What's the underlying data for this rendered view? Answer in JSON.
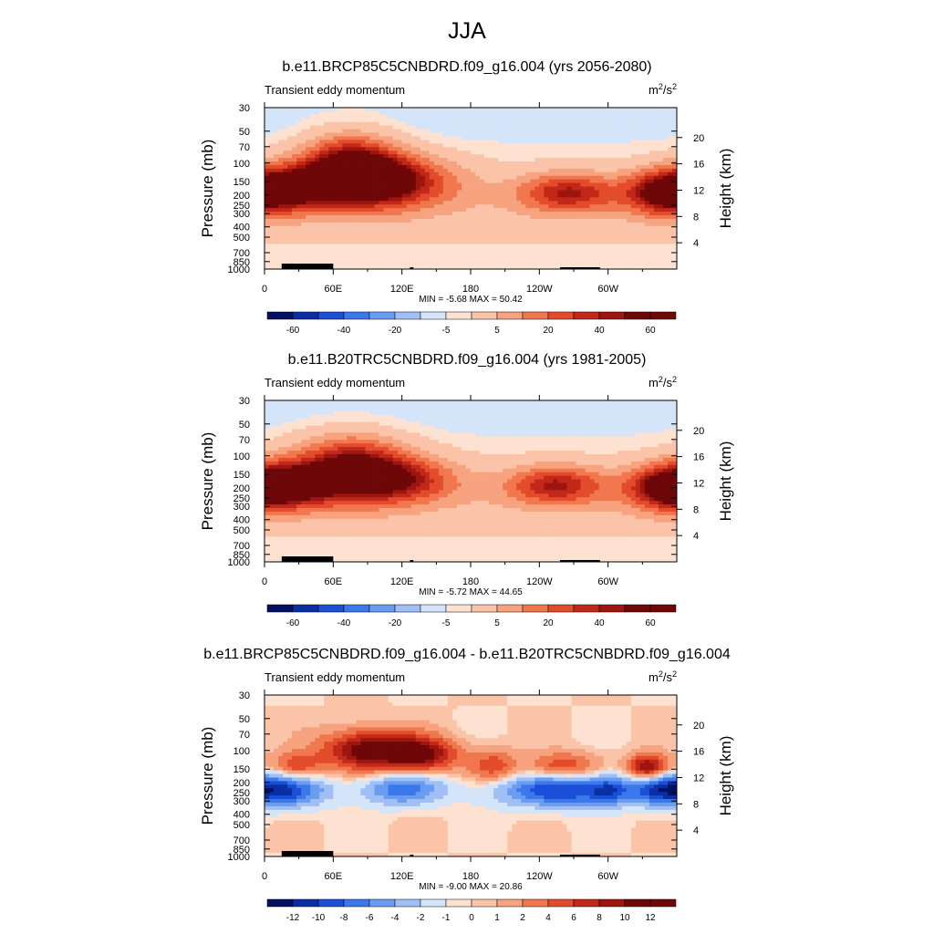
{
  "title": "JJA",
  "colors": {
    "neg": [
      "#031163",
      "#0a2fa5",
      "#1a4fd6",
      "#3b78ec",
      "#6a9cf2",
      "#9fbff5",
      "#d4e5fa"
    ],
    "pos": [
      "#fde2d2",
      "#fbc4a8",
      "#f7a37f",
      "#f1774f",
      "#e24c2a",
      "#c2281a",
      "#9c160f",
      "#6e0707"
    ],
    "terrain": "#000000"
  },
  "chart_data": [
    {
      "type": "heatmap",
      "title": "b.e11.BRCP85C5CNBDRD.f09_g16.004 (yrs 2056-2080)",
      "subtitle": "Transient eddy momentum",
      "units_base": "m",
      "units_sup1": "2",
      "units_mid": "/s",
      "units_sup2": "2",
      "ylabel": "Pressure (mb)",
      "ylabel_right": "Height (km)",
      "yticks": [
        "30",
        "50",
        "70",
        "100",
        "150",
        "200",
        "250",
        "300",
        "400",
        "500",
        "700",
        "850",
        "1000"
      ],
      "yticks_right": [
        "20",
        "16",
        "12",
        "8",
        "4"
      ],
      "xticks": [
        "0",
        "60E",
        "120E",
        "180",
        "120W",
        "60W"
      ],
      "stats": "MIN =  -5.68  MAX =  50.42",
      "colorbar_labels": [
        "-60",
        "-40",
        "-20",
        "-5",
        "5",
        "20",
        "40",
        "60"
      ],
      "colorbar_levels": 16,
      "x_range": [
        0,
        360
      ],
      "y_range": [
        1000,
        30
      ],
      "blobs": [
        {
          "lon": 75,
          "p": 110,
          "amp": 1.0,
          "sx": 30,
          "sy": 0.5
        },
        {
          "lon": 110,
          "p": 150,
          "amp": 0.8,
          "sx": 40,
          "sy": 0.4
        },
        {
          "lon": 25,
          "p": 170,
          "amp": 0.7,
          "sx": 30,
          "sy": 0.35
        },
        {
          "lon": 265,
          "p": 190,
          "amp": 0.7,
          "sx": 30,
          "sy": 0.3
        },
        {
          "lon": 350,
          "p": 190,
          "amp": 0.8,
          "sx": 25,
          "sy": 0.35
        }
      ]
    },
    {
      "type": "heatmap",
      "title": "b.e11.B20TRC5CNBDRD.f09_g16.004 (yrs 1981-2005)",
      "subtitle": "Transient eddy momentum",
      "units_base": "m",
      "units_sup1": "2",
      "units_mid": "/s",
      "units_sup2": "2",
      "ylabel": "Pressure (mb)",
      "ylabel_right": "Height (km)",
      "yticks": [
        "30",
        "50",
        "70",
        "100",
        "150",
        "200",
        "250",
        "300",
        "400",
        "500",
        "700",
        "850",
        "1000"
      ],
      "yticks_right": [
        "20",
        "16",
        "12",
        "8",
        "4"
      ],
      "xticks": [
        "0",
        "60E",
        "120E",
        "180",
        "120W",
        "60W"
      ],
      "stats": "MIN =  -5.72  MAX =  44.65",
      "colorbar_labels": [
        "-60",
        "-40",
        "-20",
        "-5",
        "5",
        "20",
        "40",
        "60"
      ],
      "colorbar_levels": 16,
      "x_range": [
        0,
        360
      ],
      "y_range": [
        1000,
        30
      ],
      "blobs": [
        {
          "lon": 75,
          "p": 130,
          "amp": 0.9,
          "sx": 35,
          "sy": 0.5
        },
        {
          "lon": 20,
          "p": 190,
          "amp": 0.7,
          "sx": 30,
          "sy": 0.35
        },
        {
          "lon": 120,
          "p": 170,
          "amp": 0.6,
          "sx": 35,
          "sy": 0.35
        },
        {
          "lon": 255,
          "p": 190,
          "amp": 0.7,
          "sx": 30,
          "sy": 0.3
        },
        {
          "lon": 352,
          "p": 200,
          "amp": 0.75,
          "sx": 25,
          "sy": 0.35
        }
      ]
    },
    {
      "type": "heatmap",
      "title": "b.e11.BRCP85C5CNBDRD.f09_g16.004 - b.e11.B20TRC5CNBDRD.f09_g16.004",
      "subtitle": "Transient eddy momentum",
      "units_base": "m",
      "units_sup1": "2",
      "units_mid": "/s",
      "units_sup2": "2",
      "ylabel": "Pressure (mb)",
      "ylabel_right": "Height (km)",
      "yticks": [
        "30",
        "50",
        "70",
        "100",
        "150",
        "200",
        "250",
        "300",
        "400",
        "500",
        "700",
        "850",
        "1000"
      ],
      "yticks_right": [
        "20",
        "16",
        "12",
        "8",
        "4"
      ],
      "xticks": [
        "0",
        "60E",
        "120E",
        "180",
        "120W",
        "60W"
      ],
      "stats": "MIN =  -9.00  MAX =  20.86",
      "colorbar_labels": [
        "-12",
        "-10",
        "-8",
        "-6",
        "-4",
        "-2",
        "-1",
        "0",
        "1",
        "2",
        "4",
        "6",
        "8",
        "10",
        "12"
      ],
      "colorbar_levels": 16,
      "x_range": [
        0,
        360
      ],
      "y_range": [
        1000,
        30
      ],
      "blobs": [
        {
          "lon": 95,
          "p": 100,
          "amp": 1.0,
          "sx": 30,
          "sy": 0.3
        },
        {
          "lon": 140,
          "p": 110,
          "amp": 0.7,
          "sx": 20,
          "sy": 0.25
        },
        {
          "lon": 28,
          "p": 140,
          "amp": 0.5,
          "sx": 15,
          "sy": 0.2
        },
        {
          "lon": 200,
          "p": 140,
          "amp": 0.45,
          "sx": 15,
          "sy": 0.25
        },
        {
          "lon": 260,
          "p": 140,
          "amp": 0.5,
          "sx": 20,
          "sy": 0.2
        },
        {
          "lon": 335,
          "p": 145,
          "amp": 0.9,
          "sx": 12,
          "sy": 0.2
        },
        {
          "lon": 20,
          "p": 240,
          "amp": -0.7,
          "sx": 25,
          "sy": 0.25
        },
        {
          "lon": 120,
          "p": 230,
          "amp": -0.6,
          "sx": 25,
          "sy": 0.25
        },
        {
          "lon": 260,
          "p": 240,
          "amp": -0.8,
          "sx": 40,
          "sy": 0.25
        },
        {
          "lon": 345,
          "p": 230,
          "amp": -0.6,
          "sx": 20,
          "sy": 0.25
        },
        {
          "lon": 300,
          "p": 240,
          "amp": -0.4,
          "sx": 10,
          "sy": 0.2
        }
      ]
    }
  ]
}
